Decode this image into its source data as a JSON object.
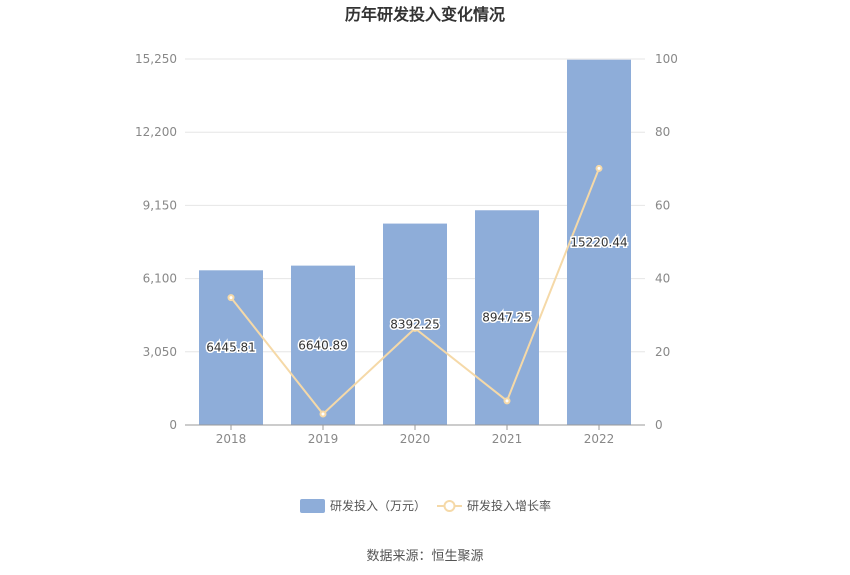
{
  "chart_data": {
    "type": "bar",
    "title": "历年研发投入变化情况",
    "categories": [
      "2018",
      "2019",
      "2020",
      "2021",
      "2022"
    ],
    "series": [
      {
        "name": "研发投入（万元）",
        "type": "bar",
        "axis": "left",
        "values": [
          6445.81,
          6640.89,
          8392.25,
          8947.25,
          15220.44
        ],
        "labels": [
          "6445.81",
          "6640.89",
          "8392.25",
          "8947.25",
          "15220.44"
        ],
        "color": "#8eadd9"
      },
      {
        "name": "研发投入增长率",
        "type": "line",
        "axis": "right",
        "values": [
          34.8,
          3.0,
          26.4,
          6.6,
          70.1
        ],
        "color": "#f5d9a8"
      }
    ],
    "y_left": {
      "min": 0,
      "max": 15250,
      "ticks": [
        0,
        3050,
        6100,
        9150,
        12200,
        15250
      ],
      "tick_labels": [
        "0",
        "3,050",
        "6,100",
        "9,150",
        "12,200",
        "15,250"
      ]
    },
    "y_right": {
      "min": 0,
      "max": 100,
      "ticks": [
        0,
        20,
        40,
        60,
        80,
        100
      ],
      "tick_labels": [
        "0",
        "20",
        "40",
        "60",
        "80",
        "100"
      ]
    },
    "grid": true,
    "legend_position": "bottom-center",
    "source": "数据来源：恒生聚源"
  }
}
